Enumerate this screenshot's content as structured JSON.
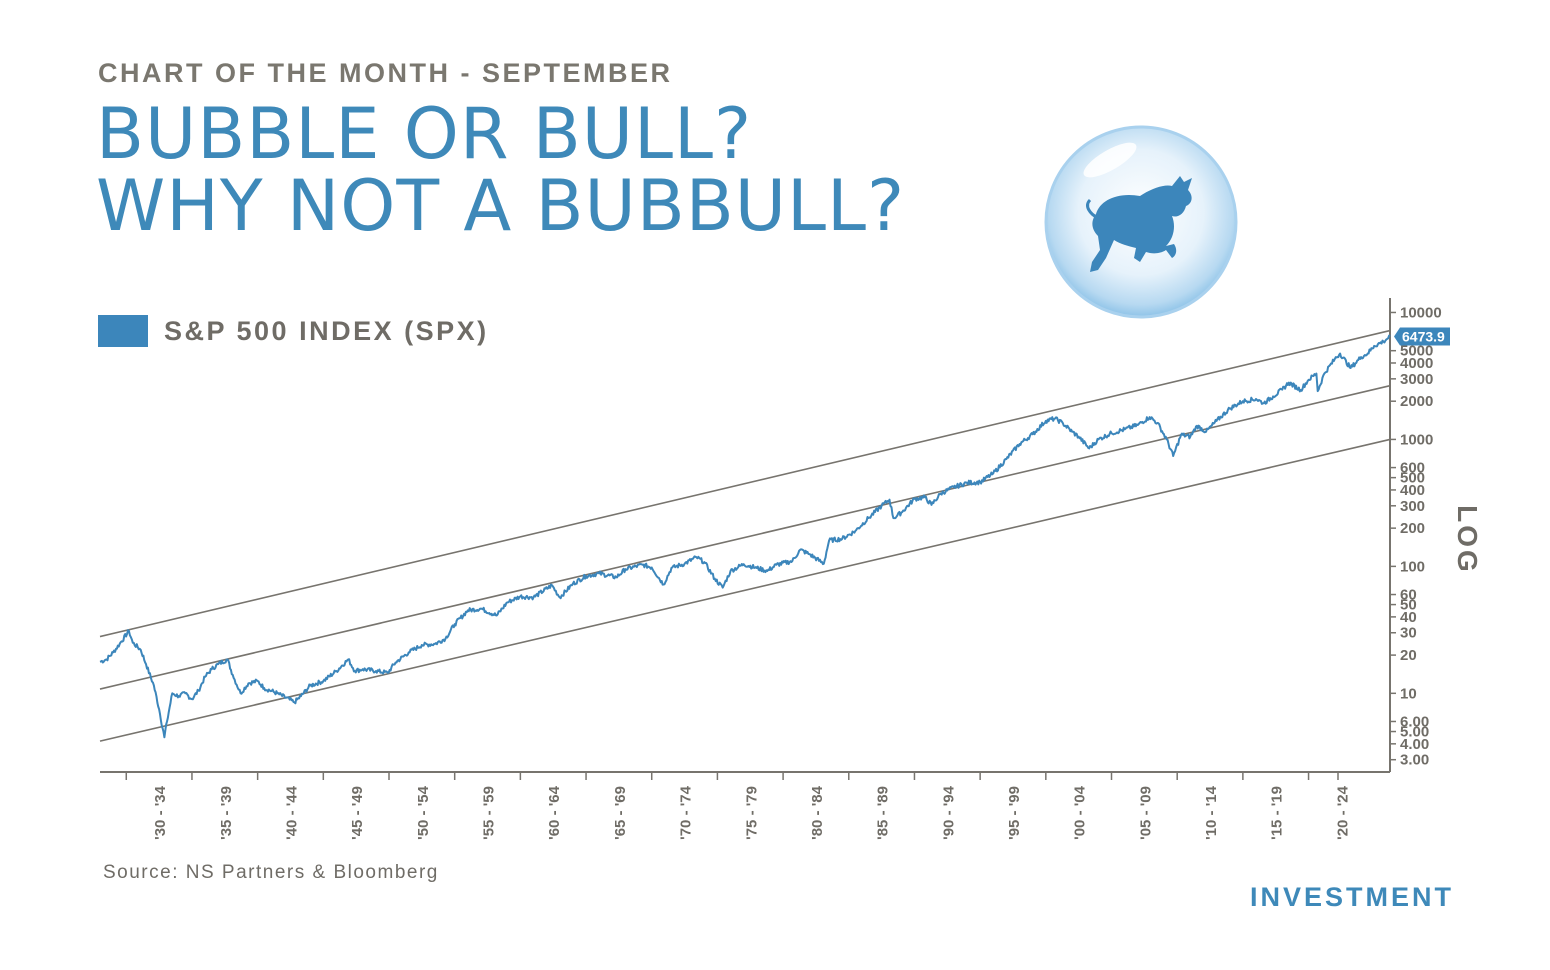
{
  "header": {
    "kicker": "CHART OF THE MONTH - SEPTEMBER",
    "title_line1": "BUBBLE OR BULL?",
    "title_line2": "WHY NOT A BUBBULL?"
  },
  "illustration": {
    "icon": "bull-in-bubble-icon"
  },
  "footer": {
    "source": "Source: NS Partners & Bloomberg",
    "brand": "INVESTMENT"
  },
  "colors": {
    "series": "#3c86bb",
    "trend": "#77746e",
    "text": "#6f6c66",
    "accent": "#3e89b9"
  },
  "chart_data": {
    "type": "line",
    "title": "",
    "xlabel": "",
    "ylabel": "LOG",
    "yscale": "log",
    "ylim": [
      2.4,
      13000
    ],
    "xlim": [
      1927.5,
      2025.7
    ],
    "legend": {
      "position": "top-left",
      "entries": [
        "S&P 500 INDEX (SPX)"
      ]
    },
    "last_value_label": "6473.9",
    "y_ticks": [
      3,
      4,
      5,
      6,
      10,
      20,
      30,
      40,
      50,
      60,
      100,
      200,
      300,
      400,
      500,
      600,
      1000,
      2000,
      3000,
      4000,
      5000,
      10000
    ],
    "y_tick_labels": [
      "3.00",
      "4.00",
      "5.00",
      "6.00",
      "10",
      "20",
      "30",
      "40",
      "50",
      "60",
      "100",
      "200",
      "300",
      "400",
      "500",
      "600",
      "1000",
      "2000",
      "3000",
      "4000",
      "5000",
      "10000"
    ],
    "x_ticks": [
      1932,
      1937,
      1942,
      1947,
      1952,
      1957,
      1962,
      1967,
      1972,
      1977,
      1982,
      1987,
      1992,
      1997,
      2002,
      2007,
      2012,
      2017,
      2022
    ],
    "x_tick_labels": [
      "'30 - '34",
      "'35 - '39",
      "'40 - '44",
      "'45 - '49",
      "'50 - '54",
      "'55 - '59",
      "'60 - '64",
      "'65 - '69",
      "'70 - '74",
      "'75 - '79",
      "'80 - '84",
      "'85 - '89",
      "'90 - '94",
      "'95 - '99",
      "'00 - '04",
      "'05 - '09",
      "'10 - '14",
      "'15 - '19",
      "'20 - '24"
    ],
    "grid": false,
    "series": [
      {
        "name": "S&P 500 INDEX (SPX)",
        "x": [
          1927.5,
          1928.0,
          1928.5,
          1929.0,
          1929.7,
          1930.0,
          1930.6,
          1931.0,
          1931.6,
          1932.0,
          1932.4,
          1932.6,
          1933.0,
          1933.5,
          1934.0,
          1934.5,
          1935.0,
          1935.5,
          1936.0,
          1936.5,
          1937.2,
          1937.6,
          1938.2,
          1938.8,
          1939.5,
          1940.0,
          1941.0,
          1942.3,
          1942.8,
          1943.5,
          1944.5,
          1945.5,
          1946.4,
          1946.9,
          1947.5,
          1948.5,
          1949.4,
          1950.0,
          1951.0,
          1952.0,
          1953.0,
          1953.8,
          1954.5,
          1955.5,
          1956.5,
          1957.7,
          1958.5,
          1959.5,
          1960.5,
          1961.9,
          1962.5,
          1963.5,
          1964.5,
          1965.5,
          1966.8,
          1967.5,
          1968.8,
          1969.5,
          1970.4,
          1971.0,
          1972.0,
          1972.9,
          1973.5,
          1974.3,
          1974.9,
          1975.5,
          1976.5,
          1977.5,
          1978.3,
          1979.0,
          1980.2,
          1980.8,
          1981.5,
          1982.6,
          1983.0,
          1984.0,
          1985.0,
          1986.0,
          1987.0,
          1987.6,
          1987.9,
          1988.5,
          1989.5,
          1990.3,
          1990.8,
          1991.5,
          1992.5,
          1993.5,
          1994.5,
          1995.5,
          1996.5,
          1997.5,
          1998.5,
          1999.5,
          2000.2,
          2000.8,
          2001.5,
          2002.0,
          2002.8,
          2003.5,
          2004.5,
          2005.5,
          2006.5,
          2007.4,
          2008.0,
          2008.7,
          2009.2,
          2009.8,
          2010.5,
          2011.0,
          2011.7,
          2012.5,
          2013.5,
          2014.5,
          2015.5,
          2016.1,
          2016.8,
          2017.5,
          2018.0,
          2018.9,
          2019.5,
          2020.1,
          2020.2,
          2020.7,
          2021.5,
          2021.9,
          2022.7,
          2023.5,
          2024.0,
          2024.5,
          2025.2,
          2025.7
        ],
        "y": [
          17.7,
          18.5,
          21.0,
          24.5,
          31.0,
          25.0,
          22.0,
          17.0,
          11.5,
          7.5,
          4.5,
          6.0,
          10.0,
          9.5,
          10.0,
          9.0,
          10.5,
          13.5,
          15.5,
          17.0,
          18.5,
          14.0,
          10.0,
          12.0,
          12.5,
          11.0,
          10.0,
          8.5,
          9.5,
          11.5,
          12.5,
          15.0,
          18.5,
          15.0,
          15.5,
          15.0,
          14.5,
          17.5,
          21.0,
          24.0,
          24.5,
          27.0,
          35.0,
          45.0,
          46.5,
          41.0,
          52.0,
          58.0,
          57.0,
          71.0,
          57.0,
          73.0,
          84.0,
          88.0,
          82.0,
          95.0,
          103.0,
          98.0,
          72.0,
          97.0,
          105.0,
          118.0,
          108.0,
          80.0,
          68.0,
          92.0,
          104.0,
          97.0,
          92.0,
          103.0,
          110.0,
          135.0,
          125.0,
          105.0,
          160.0,
          165.0,
          190.0,
          240.0,
          300.0,
          335.0,
          240.0,
          265.0,
          340.0,
          350.0,
          305.0,
          375.0,
          420.0,
          455.0,
          460.0,
          540.0,
          700.0,
          920.0,
          1100.0,
          1400.0,
          1460.0,
          1340.0,
          1150.0,
          1050.0,
          850.0,
          1000.0,
          1120.0,
          1200.0,
          1300.0,
          1500.0,
          1350.0,
          1000.0,
          740.0,
          1090.0,
          1050.0,
          1280.0,
          1150.0,
          1400.0,
          1750.0,
          2000.0,
          2080.0,
          1930.0,
          2180.0,
          2470.0,
          2800.0,
          2450.0,
          2950.0,
          3300.0,
          2400.0,
          3300.0,
          4300.0,
          4750.0,
          3650.0,
          4450.0,
          4750.0,
          5450.0,
          5900.0,
          6473.9
        ]
      }
    ],
    "trend_lines": [
      {
        "name": "upper-channel",
        "x": [
          1927.5,
          2025.7
        ],
        "y": [
          28.0,
          7200.0
        ]
      },
      {
        "name": "middle-trend",
        "x": [
          1927.5,
          2025.7
        ],
        "y": [
          10.8,
          2650.0
        ]
      },
      {
        "name": "lower-channel",
        "x": [
          1927.5,
          2025.7
        ],
        "y": [
          4.2,
          1000.0
        ]
      }
    ]
  }
}
